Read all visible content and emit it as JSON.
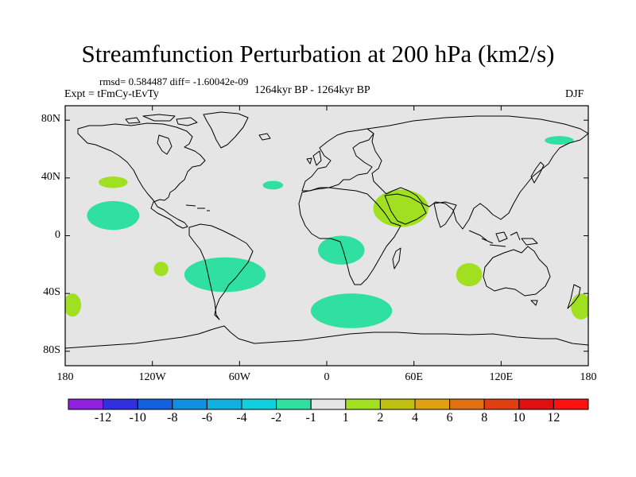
{
  "title": "Streamfunction Perturbation at 200 hPa (km2/s)",
  "stats_line": "rmsd= 0.584487 diff= -1.60042e-09",
  "experiment_label": "Expt = tFmCy-tEvTy",
  "period_label": "1264kyr BP - 1264kyr BP",
  "season_label": "DJF",
  "colors": {
    "land_background": "#e5e5e5",
    "positive_1_2": "#a0e020",
    "negative_m2_m1": "#30e0a0",
    "coastline": "#000000"
  },
  "chart_data": {
    "type": "map",
    "projection": "cylindrical-equidistant",
    "lon_range": [
      -180,
      180
    ],
    "lat_range": [
      -90,
      90
    ],
    "x_ticks": [
      "180",
      "120W",
      "60W",
      "0",
      "60E",
      "120E",
      "180"
    ],
    "y_ticks": [
      "80N",
      "40N",
      "0",
      "40S",
      "80S"
    ],
    "colorbar": {
      "labels": [
        "-12",
        "-10",
        "-8",
        "-6",
        "-4",
        "-2",
        "-1",
        "1",
        "2",
        "4",
        "6",
        "8",
        "10",
        "12"
      ],
      "colors": [
        "#9020e0",
        "#3030e0",
        "#1060e0",
        "#1090e0",
        "#10b0e0",
        "#10d0e0",
        "#30e0a0",
        "#e5e5e5",
        "#a0e020",
        "#c0c010",
        "#e0a010",
        "#e07010",
        "#e04010",
        "#e01010",
        "#ff1010"
      ]
    },
    "anomalies": [
      {
        "sign": "negative",
        "bin": "-2 to -1",
        "lon": 160,
        "lat": 66,
        "lon_radius": 10,
        "lat_radius": 3
      },
      {
        "sign": "negative",
        "bin": "-2 to -1",
        "lon": -147,
        "lat": 14,
        "lon_radius": 18,
        "lat_radius": 10
      },
      {
        "sign": "negative",
        "bin": "-2 to -1",
        "lon": -37,
        "lat": 35,
        "lon_radius": 7,
        "lat_radius": 3
      },
      {
        "sign": "negative",
        "bin": "-2 to -1",
        "lon": 10,
        "lat": -10,
        "lon_radius": 16,
        "lat_radius": 10
      },
      {
        "sign": "negative",
        "bin": "-2 to -1",
        "lon": -70,
        "lat": -27,
        "lon_radius": 28,
        "lat_radius": 12
      },
      {
        "sign": "negative",
        "bin": "-2 to -1",
        "lon": 17,
        "lat": -52,
        "lon_radius": 28,
        "lat_radius": 12
      },
      {
        "sign": "positive",
        "bin": "1 to 2",
        "lon": -147,
        "lat": 37,
        "lon_radius": 10,
        "lat_radius": 4
      },
      {
        "sign": "positive",
        "bin": "1 to 2",
        "lon": 51,
        "lat": 19,
        "lon_radius": 19,
        "lat_radius": 13
      },
      {
        "sign": "positive",
        "bin": "1 to 2",
        "lon": -114,
        "lat": -23,
        "lon_radius": 5,
        "lat_radius": 5
      },
      {
        "sign": "positive",
        "bin": "1 to 2",
        "lon": 98,
        "lat": -27,
        "lon_radius": 9,
        "lat_radius": 8
      },
      {
        "sign": "positive",
        "bin": "1 to 2",
        "lon": -175,
        "lat": -48,
        "lon_radius": 6,
        "lat_radius": 8
      },
      {
        "sign": "positive",
        "bin": "1 to 2",
        "lon": 175,
        "lat": -49,
        "lon_radius": 7,
        "lat_radius": 9
      }
    ]
  }
}
